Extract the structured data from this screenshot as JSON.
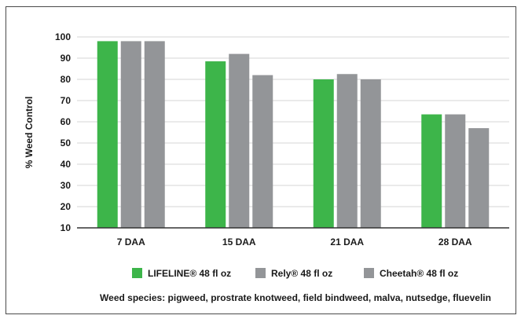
{
  "chart_data": {
    "type": "bar",
    "title": "",
    "xlabel": "",
    "ylabel": "% Weed Control",
    "ylim": [
      10,
      100
    ],
    "yticks": [
      10,
      20,
      30,
      40,
      50,
      60,
      70,
      80,
      90,
      100
    ],
    "grid": true,
    "categories": [
      "7 DAA",
      "15 DAA",
      "21 DAA",
      "28 DAA"
    ],
    "series": [
      {
        "name": "LIFELINE® 48 fl oz",
        "color": "#3db54a",
        "values": [
          98,
          88.5,
          80,
          63.5
        ]
      },
      {
        "name": "Rely® 48 fl oz",
        "color": "#939598",
        "values": [
          98,
          92,
          82.5,
          63.5
        ]
      },
      {
        "name": "Cheetah® 48 fl oz",
        "color": "#939598",
        "values": [
          98,
          82,
          80,
          57
        ]
      }
    ],
    "legend_position": "bottom",
    "footnote": "Weed species: pigweed, prostrate knotweed, field bindweed, malva, nutsedge, fluevelin"
  }
}
